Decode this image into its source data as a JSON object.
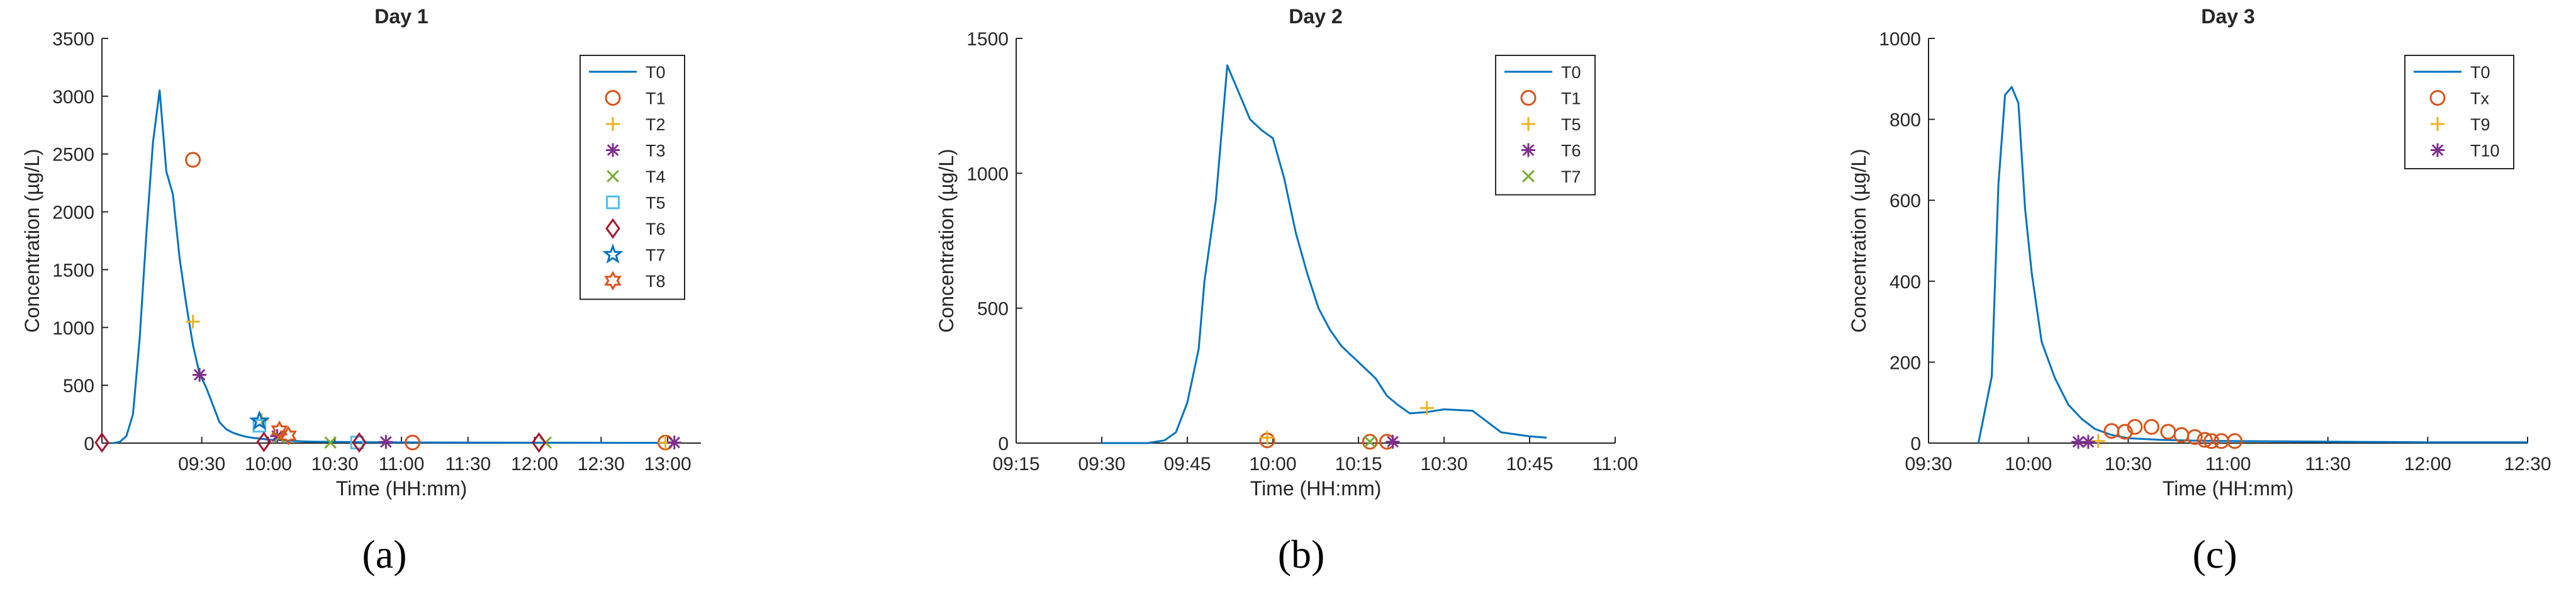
{
  "figure": {
    "colors": {
      "axis": "#262626",
      "line": "#0072BD",
      "orange": "#D95319",
      "yellow": "#EDB120",
      "purple": "#7E2F8E",
      "green": "#77AC30",
      "cyan": "#4DBEEE",
      "darkred": "#A2142F"
    }
  },
  "chart_data": [
    {
      "type": "line",
      "title": "Day 1",
      "panel_label": "(a)",
      "xlabel": "Time (HH:mm)",
      "ylabel": "Concentration (µg/L)",
      "xlim": [
        525,
        795
      ],
      "ylim": [
        0,
        3500
      ],
      "xticks": [
        570,
        600,
        630,
        660,
        690,
        720,
        750,
        780
      ],
      "xtick_labels": [
        "09:30",
        "10:00",
        "10:30",
        "11:00",
        "11:30",
        "12:00",
        "12:30",
        "13:00"
      ],
      "yticks": [
        0,
        500,
        1000,
        1500,
        2000,
        2500,
        3000,
        3500
      ],
      "ytick_labels": [
        "0",
        "500",
        "1000",
        "1500",
        "2000",
        "2500",
        "3000",
        "3500"
      ],
      "series": [
        {
          "name": "T0",
          "kind": "line",
          "color": "line",
          "x": [
            530,
            533,
            536,
            539,
            542,
            545,
            548,
            551,
            554,
            557,
            560,
            563,
            566,
            569,
            572,
            575,
            578,
            581,
            584,
            587,
            590,
            593,
            596,
            600,
            605,
            610,
            615,
            620,
            640,
            660,
            680,
            700,
            720,
            740,
            760,
            780
          ],
          "y": [
            0,
            10,
            60,
            250,
            900,
            1800,
            2600,
            3050,
            2350,
            2150,
            1600,
            1200,
            850,
            600,
            480,
            330,
            180,
            120,
            90,
            70,
            55,
            45,
            40,
            30,
            25,
            20,
            15,
            12,
            8,
            6,
            5,
            4,
            3,
            3,
            2,
            2
          ]
        },
        {
          "name": "T1",
          "kind": "marker",
          "marker": "circle",
          "color": "orange",
          "x": [
            566,
            665,
            779
          ],
          "y": [
            2450,
            5,
            5
          ]
        },
        {
          "name": "T2",
          "kind": "marker",
          "marker": "plus",
          "color": "yellow",
          "x": [
            566,
            597,
            779
          ],
          "y": [
            1050,
            200,
            5
          ]
        },
        {
          "name": "T3",
          "kind": "marker",
          "marker": "asterisk",
          "color": "purple",
          "x": [
            569,
            604,
            653,
            783
          ],
          "y": [
            590,
            60,
            10,
            5
          ]
        },
        {
          "name": "T4",
          "kind": "marker",
          "marker": "x",
          "color": "green",
          "x": [
            605,
            628,
            725
          ],
          "y": [
            50,
            5,
            5
          ]
        },
        {
          "name": "T5",
          "kind": "marker",
          "marker": "square",
          "color": "cyan",
          "x": [
            596,
            640
          ],
          "y": [
            150,
            5
          ]
        },
        {
          "name": "T6",
          "kind": "marker",
          "marker": "diamond",
          "color": "darkred",
          "x": [
            525,
            598,
            641,
            722
          ],
          "y": [
            5,
            10,
            5,
            5
          ]
        },
        {
          "name": "T7",
          "kind": "marker",
          "marker": "star",
          "color": "line",
          "x": [
            596
          ],
          "y": [
            190
          ]
        },
        {
          "name": "T8",
          "kind": "marker",
          "marker": "hexagram",
          "color": "orange",
          "x": [
            605,
            609
          ],
          "y": [
            110,
            65
          ]
        }
      ]
    },
    {
      "type": "line",
      "title": "Day 2",
      "panel_label": "(b)",
      "xlabel": "Time (HH:mm)",
      "ylabel": "Concentration (µg/L)",
      "xlim": [
        555,
        660
      ],
      "ylim": [
        0,
        1500
      ],
      "xticks": [
        555,
        570,
        585,
        600,
        615,
        630,
        645,
        660
      ],
      "xtick_labels": [
        "09:15",
        "09:30",
        "09:45",
        "10:00",
        "10:15",
        "10:30",
        "10:45",
        "11:00"
      ],
      "yticks": [
        0,
        500,
        1000,
        1500
      ],
      "ytick_labels": [
        "0",
        "500",
        "1000",
        "1500"
      ],
      "series": [
        {
          "name": "T0",
          "kind": "line",
          "color": "line",
          "x": [
            570,
            578,
            581,
            583,
            585,
            587,
            588,
            590,
            592,
            594,
            596,
            598,
            600,
            602,
            604,
            606,
            608,
            610,
            612,
            614,
            616,
            618,
            620,
            622,
            624,
            627,
            630,
            635,
            640,
            645,
            648
          ],
          "y": [
            0,
            0,
            10,
            40,
            150,
            350,
            600,
            900,
            1400,
            1300,
            1200,
            1160,
            1130,
            980,
            780,
            630,
            500,
            420,
            360,
            320,
            280,
            240,
            175,
            140,
            110,
            115,
            125,
            120,
            40,
            25,
            20
          ]
        },
        {
          "name": "T1",
          "kind": "marker",
          "marker": "circle",
          "color": "orange",
          "x": [
            599,
            617,
            620
          ],
          "y": [
            10,
            5,
            5
          ]
        },
        {
          "name": "T5",
          "kind": "marker",
          "marker": "plus",
          "color": "yellow",
          "x": [
            599,
            627
          ],
          "y": [
            20,
            130
          ]
        },
        {
          "name": "T6",
          "kind": "marker",
          "marker": "asterisk",
          "color": "purple",
          "x": [
            621
          ],
          "y": [
            5
          ]
        },
        {
          "name": "T7",
          "kind": "marker",
          "marker": "x",
          "color": "green",
          "x": [
            617
          ],
          "y": [
            5
          ]
        }
      ]
    },
    {
      "type": "line",
      "title": "Day 3",
      "panel_label": "(c)",
      "xlabel": "Time (HH:mm)",
      "ylabel": "Concentration (µg/L)",
      "xlim": [
        570,
        750
      ],
      "ylim": [
        0,
        1000
      ],
      "xticks": [
        570,
        600,
        630,
        660,
        690,
        720,
        750
      ],
      "xtick_labels": [
        "09:30",
        "10:00",
        "10:30",
        "11:00",
        "11:30",
        "12:00",
        "12:30"
      ],
      "yticks": [
        0,
        200,
        400,
        600,
        800,
        1000
      ],
      "ytick_labels": [
        "0",
        "200",
        "400",
        "600",
        "800",
        "1000"
      ],
      "series": [
        {
          "name": "T0",
          "kind": "line",
          "color": "line",
          "x": [
            585,
            589,
            591,
            593,
            595,
            597,
            599,
            601,
            604,
            608,
            612,
            616,
            620,
            625,
            630,
            640,
            650,
            660,
            680,
            700,
            720,
            740,
            750
          ],
          "y": [
            0,
            165,
            640,
            860,
            880,
            840,
            580,
            420,
            250,
            160,
            95,
            60,
            35,
            20,
            12,
            8,
            6,
            5,
            4,
            3,
            2,
            2,
            2
          ]
        },
        {
          "name": "Tx",
          "kind": "marker",
          "marker": "circle",
          "color": "orange",
          "x": [
            625,
            629,
            632,
            637,
            642,
            646,
            650,
            653,
            655,
            658,
            662
          ],
          "y": [
            30,
            28,
            40,
            40,
            28,
            20,
            15,
            8,
            5,
            5,
            5
          ]
        },
        {
          "name": "T9",
          "kind": "marker",
          "marker": "plus",
          "color": "yellow",
          "x": [
            621
          ],
          "y": [
            5
          ]
        },
        {
          "name": "T10",
          "kind": "marker",
          "marker": "asterisk",
          "color": "purple",
          "x": [
            615,
            618
          ],
          "y": [
            3,
            3
          ]
        }
      ]
    }
  ]
}
